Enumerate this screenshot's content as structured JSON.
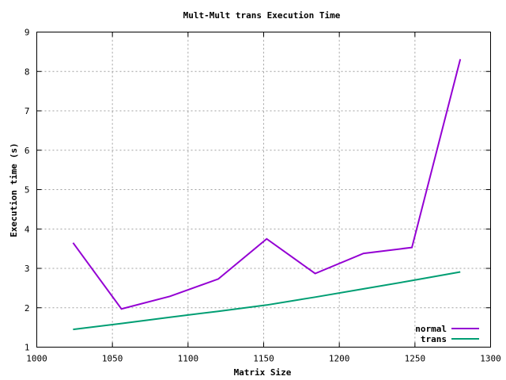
{
  "chart_data": {
    "type": "line",
    "title": "Mult-Mult trans Execution Time",
    "xlabel": "Matrix Size",
    "ylabel": "Execution time (s)",
    "xlim": [
      1000,
      1300
    ],
    "ylim": [
      1,
      9
    ],
    "xticks": [
      1000,
      1050,
      1100,
      1150,
      1200,
      1250,
      1300
    ],
    "yticks": [
      1,
      2,
      3,
      4,
      5,
      6,
      7,
      8,
      9
    ],
    "grid": true,
    "legend_position": "bottom-right",
    "x": [
      1024,
      1056,
      1088,
      1120,
      1152,
      1184,
      1216,
      1248,
      1280
    ],
    "series": [
      {
        "name": "normal",
        "color": "#9400d3",
        "values": [
          3.65,
          1.97,
          2.29,
          2.73,
          3.75,
          2.87,
          3.38,
          3.53,
          8.31
        ]
      },
      {
        "name": "trans",
        "color": "#009e73",
        "values": [
          1.45,
          1.6,
          1.76,
          1.91,
          2.07,
          2.27,
          2.48,
          2.69,
          2.91
        ]
      }
    ]
  }
}
